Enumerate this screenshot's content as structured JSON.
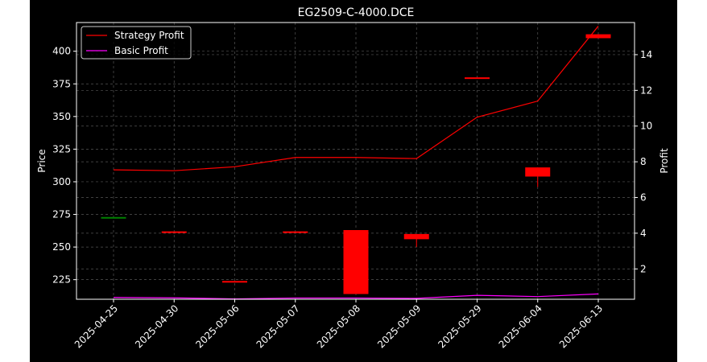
{
  "chart_data": {
    "type": "candlestick",
    "title": "EG2509-C-4000.DCE",
    "xlabel": "",
    "ylabel": "Price",
    "y2label": "Profit",
    "categories": [
      "2025-04-25",
      "2025-04-30",
      "2025-05-06",
      "2025-05-07",
      "2025-05-08",
      "2025-05-09",
      "2025-05-29",
      "2025-06-04",
      "2025-06-13"
    ],
    "ylim": [
      210,
      422
    ],
    "yticks": [
      225,
      250,
      275,
      300,
      325,
      350,
      375,
      400
    ],
    "y2lim": [
      0.3,
      15.8
    ],
    "y2ticks": [
      2,
      4,
      6,
      8,
      10,
      12,
      14
    ],
    "grid": true,
    "legend_position": "top-left",
    "candles": [
      {
        "date": "2025-04-25",
        "open": 273,
        "high": 273,
        "low": 273,
        "close": 273,
        "color": "#008000"
      },
      {
        "date": "2025-04-30",
        "open": 262,
        "high": 262,
        "low": 262,
        "close": 262,
        "color": "#ff0000"
      },
      {
        "date": "2025-05-06",
        "open": 224,
        "high": 224,
        "low": 224,
        "close": 224,
        "color": "#ff0000"
      },
      {
        "date": "2025-05-07",
        "open": 262,
        "high": 262,
        "low": 262,
        "close": 262,
        "color": "#ff0000"
      },
      {
        "date": "2025-05-08",
        "open": 263,
        "high": 263,
        "low": 214,
        "close": 214,
        "color": "#ff0000"
      },
      {
        "date": "2025-05-09",
        "open": 260,
        "high": 260,
        "low": 250,
        "close": 256,
        "color": "#ff0000"
      },
      {
        "date": "2025-05-29",
        "open": 380,
        "high": 380,
        "low": 380,
        "close": 380,
        "color": "#ff0000"
      },
      {
        "date": "2025-06-04",
        "open": 311,
        "high": 311,
        "low": 296,
        "close": 304,
        "color": "#ff0000"
      },
      {
        "date": "2025-06-13",
        "open": 413,
        "high": 413,
        "low": 410,
        "close": 410,
        "color": "#ff0000"
      }
    ],
    "series": [
      {
        "name": "Strategy Profit",
        "color": "#ff0000",
        "axis": "right",
        "values": [
          7.55,
          7.5,
          7.72,
          8.24,
          8.24,
          8.18,
          10.5,
          11.4,
          15.6
        ]
      },
      {
        "name": "Basic Profit",
        "color": "#ff00ff",
        "axis": "right",
        "values": [
          0.4,
          0.38,
          0.32,
          0.37,
          0.37,
          0.35,
          0.52,
          0.45,
          0.6
        ]
      }
    ]
  },
  "colors": {
    "background": "#000000",
    "axes": "#ffffff",
    "grid": "#555555"
  }
}
